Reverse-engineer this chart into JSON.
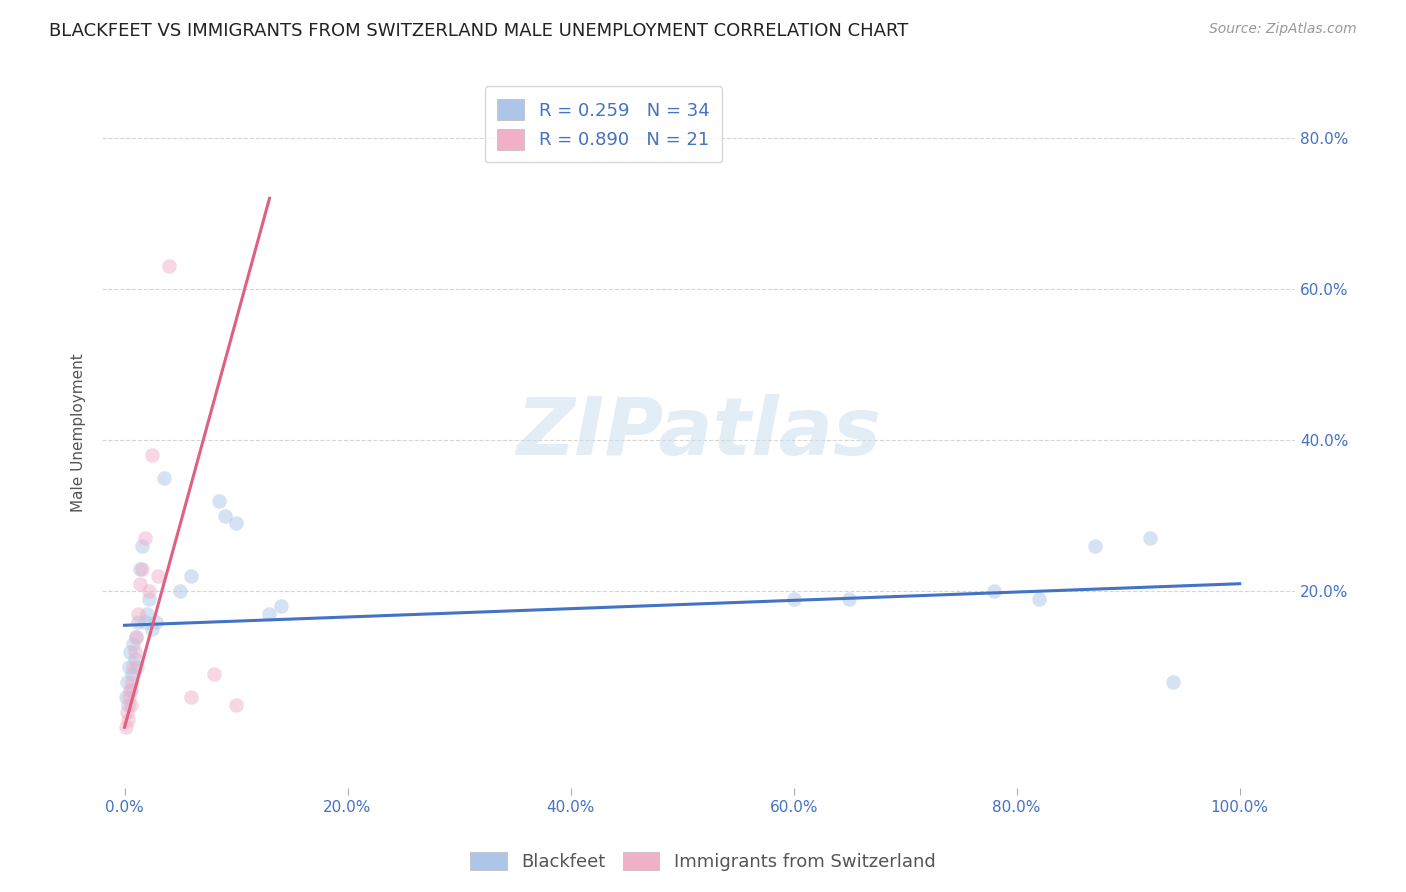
{
  "title": "BLACKFEET VS IMMIGRANTS FROM SWITZERLAND MALE UNEMPLOYMENT CORRELATION CHART",
  "source": "Source: ZipAtlas.com",
  "ylabel": "Male Unemployment",
  "watermark": "ZIPatlas",
  "background_color": "#ffffff",
  "grid_color": "#cccccc",
  "blue_scatter_x": [
    0.001,
    0.002,
    0.003,
    0.004,
    0.005,
    0.006,
    0.007,
    0.008,
    0.009,
    0.01,
    0.011,
    0.012,
    0.014,
    0.016,
    0.018,
    0.02,
    0.022,
    0.025,
    0.028,
    0.035,
    0.05,
    0.06,
    0.085,
    0.09,
    0.1,
    0.13,
    0.14,
    0.6,
    0.65,
    0.78,
    0.82,
    0.87,
    0.92,
    0.94
  ],
  "blue_scatter_y": [
    0.06,
    0.08,
    0.05,
    0.1,
    0.12,
    0.07,
    0.09,
    0.13,
    0.11,
    0.14,
    0.1,
    0.16,
    0.23,
    0.26,
    0.16,
    0.17,
    0.19,
    0.15,
    0.16,
    0.35,
    0.2,
    0.22,
    0.32,
    0.3,
    0.29,
    0.17,
    0.18,
    0.19,
    0.19,
    0.2,
    0.19,
    0.26,
    0.27,
    0.08
  ],
  "pink_scatter_x": [
    0.001,
    0.002,
    0.003,
    0.004,
    0.005,
    0.006,
    0.007,
    0.008,
    0.009,
    0.01,
    0.012,
    0.014,
    0.016,
    0.018,
    0.022,
    0.025,
    0.03,
    0.04,
    0.06,
    0.08,
    0.1
  ],
  "pink_scatter_y": [
    0.02,
    0.04,
    0.03,
    0.06,
    0.07,
    0.05,
    0.08,
    0.1,
    0.12,
    0.14,
    0.17,
    0.21,
    0.23,
    0.27,
    0.2,
    0.38,
    0.22,
    0.63,
    0.06,
    0.09,
    0.05
  ],
  "blue_line_x": [
    0.0,
    1.0
  ],
  "blue_line_y": [
    0.155,
    0.21
  ],
  "blue_line_color": "#4472c4",
  "pink_line_x": [
    0.0,
    0.13
  ],
  "pink_line_y": [
    0.02,
    0.72
  ],
  "pink_line_color": "#e06080",
  "blue_color": "#adc6e8",
  "pink_color": "#f0b0c8",
  "legend_r_blue": "R = 0.259",
  "legend_n_blue": "N = 34",
  "legend_r_pink": "R = 0.890",
  "legend_n_pink": "N = 21",
  "xticks": [
    0.0,
    0.2,
    0.4,
    0.6,
    0.8,
    1.0
  ],
  "xtick_labels": [
    "0.0%",
    "20.0%",
    "40.0%",
    "60.0%",
    "80.0%",
    "100.0%"
  ],
  "ytick_positions": [
    0.2,
    0.4,
    0.6,
    0.8
  ],
  "ytick_labels": [
    "20.0%",
    "40.0%",
    "60.0%",
    "80.0%"
  ],
  "xlim": [
    -0.02,
    1.05
  ],
  "ylim": [
    -0.06,
    0.88
  ],
  "marker_size": 110,
  "alpha": 0.5,
  "title_fontsize": 13,
  "axis_label_fontsize": 11,
  "tick_fontsize": 11,
  "legend_fontsize": 13,
  "source_fontsize": 10
}
